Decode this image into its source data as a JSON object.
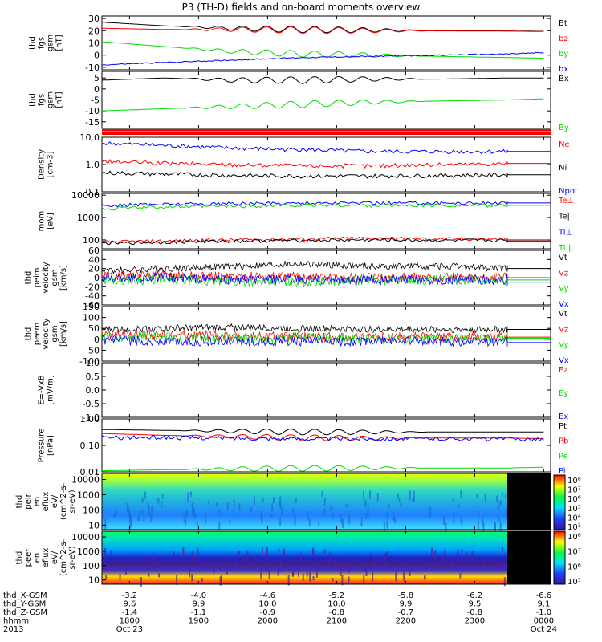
{
  "title": "P3 (TH-D) fields and on-board moments overview",
  "chart_data": [
    {
      "type": "line",
      "panel": "fgs_gsm_nt_1",
      "ylabel": [
        "thd",
        "fgs",
        "gsm",
        "[nT]"
      ],
      "yticks": [
        30,
        20,
        10,
        0,
        -10
      ],
      "ylim": [
        -12,
        32
      ],
      "series": [
        {
          "name": "Bt",
          "color": "#000000",
          "x": [
            17.6,
            18.5,
            19.5,
            20.5,
            21.5,
            22.5,
            23.5,
            24.0
          ],
          "y": [
            27,
            24,
            22,
            21,
            20.5,
            20,
            19.8,
            19.5
          ]
        },
        {
          "name": "bz",
          "color": "#ff0000",
          "x": [
            17.6,
            18.5,
            19.5,
            20.5,
            21.5,
            22.5,
            23.5,
            24.0
          ],
          "y": [
            22,
            21,
            21,
            20.5,
            20,
            19.8,
            19.6,
            19.3
          ]
        },
        {
          "name": "by",
          "color": "#00dd00",
          "x": [
            17.6,
            18.5,
            19.5,
            20.5,
            21.5,
            22.5,
            23.5,
            24.0
          ],
          "y": [
            11,
            7,
            3,
            1,
            0,
            -1,
            -2,
            -2.5
          ]
        },
        {
          "name": "bx",
          "color": "#0000ff",
          "x": [
            17.6,
            18.5,
            19.5,
            20.5,
            21.5,
            22.5,
            23.5,
            24.0
          ],
          "y": [
            -8,
            -6,
            -4,
            -2,
            -1,
            0,
            1,
            2
          ]
        }
      ]
    },
    {
      "type": "line",
      "panel": "fgs_gsm_nt_2",
      "ylabel": [
        "thd",
        "fgs",
        "gsm",
        "[nT]"
      ],
      "yticks": [
        5,
        0,
        -5,
        -10,
        -15
      ],
      "ylim": [
        -18,
        8
      ],
      "series": [
        {
          "name": "Bx",
          "color": "#000000",
          "x": [
            17.6,
            18.5,
            19.5,
            20.5,
            21.5,
            22.5,
            23.5,
            24.0
          ],
          "y": [
            4,
            5,
            4,
            4,
            4.5,
            4.5,
            5,
            5
          ]
        },
        {
          "name": "By",
          "color": "#00dd00",
          "x": [
            17.6,
            18.5,
            19.5,
            20.5,
            21.5,
            22.5,
            23.5,
            24.0
          ],
          "y": [
            -10,
            -9,
            -8,
            -7,
            -6,
            -5.5,
            -5,
            -4.5
          ]
        }
      ]
    },
    {
      "type": "line",
      "panel": "density",
      "ylabel": [
        "Density",
        "[cm-3]"
      ],
      "yticks": [
        "10.0",
        "1.0",
        "0.1"
      ],
      "yscale": "log",
      "ylim": [
        0.1,
        10
      ],
      "series": [
        {
          "name": "Ne",
          "color": "#ff0000",
          "x": [
            17.6,
            18.5,
            19.5,
            20.5,
            21.5,
            22.5,
            23.5,
            24.0
          ],
          "y": [
            1.3,
            1.1,
            1.0,
            0.9,
            0.9,
            1.0,
            1.1,
            1.1
          ]
        },
        {
          "name": "Ni",
          "color": "#000000",
          "x": [
            17.6,
            18.5,
            19.5,
            20.5,
            21.5,
            22.5,
            23.5,
            24.0
          ],
          "y": [
            0.5,
            0.45,
            0.4,
            0.38,
            0.38,
            0.4,
            0.42,
            0.42
          ]
        },
        {
          "name": "Npot",
          "color": "#0000ff",
          "x": [
            17.6,
            18.5,
            19.5,
            20.5,
            21.5,
            22.5,
            23.5,
            24.0
          ],
          "y": [
            6,
            5,
            4,
            3.5,
            3,
            3,
            3,
            3
          ]
        }
      ]
    },
    {
      "type": "line",
      "panel": "temperature",
      "ylabel": [
        "mom",
        "[eV]"
      ],
      "yticks": [
        "10000",
        "1000",
        "100"
      ],
      "yscale": "log",
      "ylim": [
        40,
        12000
      ],
      "series": [
        {
          "name": "Te⊥",
          "color": "#ff0000",
          "x": [
            17.6,
            18.5,
            19.5,
            20.5,
            21.5,
            22.5,
            23.5,
            24.0
          ],
          "y": [
            80,
            90,
            100,
            110,
            120,
            110,
            110,
            100
          ]
        },
        {
          "name": "Te||",
          "color": "#000000",
          "x": [
            17.6,
            18.5,
            19.5,
            20.5,
            21.5,
            22.5,
            23.5,
            24.0
          ],
          "y": [
            70,
            80,
            90,
            95,
            100,
            95,
            95,
            90
          ]
        },
        {
          "name": "Ti⊥",
          "color": "#0000ff",
          "x": [
            17.6,
            18.5,
            19.5,
            20.5,
            21.5,
            22.5,
            23.5,
            24.0
          ],
          "y": [
            3500,
            4000,
            4200,
            4500,
            4500,
            4500,
            4500,
            4500
          ]
        },
        {
          "name": "Ti||",
          "color": "#00dd00",
          "x": [
            17.6,
            18.5,
            19.5,
            20.5,
            21.5,
            22.5,
            23.5,
            24.0
          ],
          "y": [
            2500,
            3000,
            3200,
            3500,
            3500,
            3500,
            3500,
            3500
          ]
        }
      ]
    },
    {
      "type": "line",
      "panel": "ion_velocity",
      "ylabel": [
        "thd",
        "peim",
        "velocity",
        "gsm",
        "[km/s]"
      ],
      "yticks": [
        60,
        40,
        20,
        0,
        -20,
        -40,
        -60
      ],
      "ylim": [
        -60,
        60
      ],
      "series": [
        {
          "name": "Vt",
          "color": "#000000",
          "x": [
            17.6,
            18.5,
            19.5,
            20.5,
            21.5,
            22.5,
            23.5,
            24.0
          ],
          "y": [
            15,
            20,
            25,
            30,
            25,
            25,
            20,
            20
          ]
        },
        {
          "name": "Vz",
          "color": "#ff0000",
          "x": [
            17.6,
            18.5,
            19.5,
            20.5,
            21.5,
            22.5,
            23.5,
            24.0
          ],
          "y": [
            5,
            5,
            3,
            2,
            0,
            0,
            0,
            0
          ]
        },
        {
          "name": "Vy",
          "color": "#00dd00",
          "x": [
            17.6,
            18.5,
            19.5,
            20.5,
            21.5,
            22.5,
            23.5,
            24.0
          ],
          "y": [
            -5,
            -5,
            -10,
            -10,
            -5,
            -5,
            -5,
            -5
          ]
        },
        {
          "name": "Vx",
          "color": "#0000ff",
          "x": [
            17.6,
            18.5,
            19.5,
            20.5,
            21.5,
            22.5,
            23.5,
            24.0
          ],
          "y": [
            0,
            0,
            -5,
            -5,
            -5,
            -5,
            -5,
            -10
          ]
        }
      ]
    },
    {
      "type": "line",
      "panel": "electron_velocity",
      "ylabel": [
        "thd",
        "peem",
        "velocity",
        "gsm",
        "[km/s]"
      ],
      "yticks": [
        150,
        100,
        50,
        0,
        -50,
        -100
      ],
      "ylim": [
        -100,
        150
      ],
      "series": [
        {
          "name": "Vt",
          "color": "#000000",
          "x": [
            17.6,
            18.5,
            19.5,
            20.5,
            21.5,
            22.5,
            23.5,
            24.0
          ],
          "y": [
            45,
            50,
            55,
            50,
            45,
            45,
            45,
            45
          ]
        },
        {
          "name": "Vz",
          "color": "#ff0000",
          "x": [
            17.6,
            18.5,
            19.5,
            20.5,
            21.5,
            22.5,
            23.5,
            24.0
          ],
          "y": [
            20,
            20,
            15,
            10,
            10,
            10,
            10,
            10
          ]
        },
        {
          "name": "Vy",
          "color": "#00dd00",
          "x": [
            17.6,
            18.5,
            19.5,
            20.5,
            21.5,
            22.5,
            23.5,
            24.0
          ],
          "y": [
            10,
            10,
            5,
            5,
            5,
            5,
            5,
            5
          ]
        },
        {
          "name": "Vx",
          "color": "#0000ff",
          "x": [
            17.6,
            18.5,
            19.5,
            20.5,
            21.5,
            22.5,
            23.5,
            24.0
          ],
          "y": [
            -5,
            -10,
            -10,
            -10,
            -10,
            -10,
            -10,
            -15
          ]
        }
      ]
    },
    {
      "type": "line",
      "panel": "efield",
      "ylabel": [
        "E=-VxB",
        "[mV/m]"
      ],
      "yticks": [
        "1.0",
        "0.5",
        "0.0",
        "-0.5",
        "-1.0"
      ],
      "ylim": [
        -1,
        1
      ],
      "series": [
        {
          "name": "Ez",
          "color": "#ff0000",
          "x": [],
          "y": []
        },
        {
          "name": "Ey",
          "color": "#00dd00",
          "x": [],
          "y": []
        },
        {
          "name": "Ex",
          "color": "#0000ff",
          "x": [],
          "y": []
        }
      ]
    },
    {
      "type": "line",
      "panel": "pressure",
      "ylabel": [
        "Pressure",
        "[nPa]"
      ],
      "yticks": [
        "1.00",
        "0.10",
        "0.01"
      ],
      "yscale": "log",
      "ylim": [
        0.01,
        1.0
      ],
      "series": [
        {
          "name": "Pt",
          "color": "#000000",
          "x": [
            17.6,
            18.5,
            19.5,
            20.5,
            21.5,
            22.5,
            23.5,
            24.0
          ],
          "y": [
            0.4,
            0.37,
            0.35,
            0.33,
            0.32,
            0.32,
            0.32,
            0.32
          ]
        },
        {
          "name": "Pb",
          "color": "#ff0000",
          "x": [
            17.6,
            18.5,
            19.5,
            20.5,
            21.5,
            22.5,
            23.5,
            24.0
          ],
          "y": [
            0.28,
            0.24,
            0.22,
            0.2,
            0.19,
            0.19,
            0.19,
            0.18
          ]
        },
        {
          "name": "Pe",
          "color": "#00dd00",
          "x": [
            17.6,
            18.5,
            19.5,
            20.5,
            21.5,
            22.5,
            23.5,
            24.0
          ],
          "y": [
            0.011,
            0.012,
            0.013,
            0.014,
            0.014,
            0.014,
            0.014,
            0.015
          ]
        },
        {
          "name": "Pi",
          "color": "#0000ff",
          "x": [
            17.6,
            18.5,
            19.5,
            20.5,
            21.5,
            22.5,
            23.5,
            24.0
          ],
          "y": [
            0.2,
            0.2,
            0.19,
            0.18,
            0.18,
            0.18,
            0.18,
            0.17
          ]
        }
      ]
    },
    {
      "type": "heatmap",
      "panel": "ion_spectrogram",
      "ylabel": [
        "thd",
        "peir",
        "en",
        "eflux",
        "eV/",
        "(cm^2-s-",
        "sr-eV)"
      ],
      "yticks": [
        "10000",
        "1000",
        "100",
        "10"
      ],
      "yscale": "log",
      "ylim": [
        5,
        25000
      ]
    },
    {
      "type": "heatmap",
      "panel": "electron_spectrogram",
      "ylabel": [
        "thd",
        "peer",
        "en",
        "eflux",
        "eV/",
        "(cm^2-s-",
        "sr-eV)"
      ],
      "yticks": [
        "10000",
        "1000",
        "100",
        "10"
      ],
      "yscale": "log",
      "ylim": [
        5,
        25000
      ]
    }
  ],
  "colorbar_ion": {
    "ticks": [
      "10^8",
      "10^7",
      "10^6",
      "10^5",
      "10^4",
      "10^3"
    ]
  },
  "colorbar_electron": {
    "ticks": [
      "10^8",
      "10^7",
      "10^6",
      "10^5"
    ]
  },
  "xaxis": {
    "ticks": [
      18,
      19,
      20,
      21,
      22,
      23,
      24
    ],
    "xlim": [
      17.6,
      24.1
    ],
    "rows": [
      {
        "label": "thd_X-GSM",
        "values": [
          "-3.2",
          "-4.0",
          "-4.6",
          "-5.2",
          "-5.8",
          "-6.2",
          "-6.6"
        ]
      },
      {
        "label": "thd_Y-GSM",
        "values": [
          "9.6",
          "9.9",
          "10.0",
          "10.0",
          "9.9",
          "9.5",
          "9.1"
        ]
      },
      {
        "label": "thd_Z-GSM",
        "values": [
          "-1.4",
          "-1.1",
          "-0.9",
          "-0.8",
          "-0.7",
          "-0.8",
          "-1.0"
        ]
      },
      {
        "label": "hhmm",
        "values": [
          "1800",
          "1900",
          "2000",
          "2100",
          "2200",
          "2300",
          "0000"
        ]
      },
      {
        "label": "2013",
        "values": [
          "Oct 23",
          "",
          "",
          "",
          "",
          "",
          "Oct 24"
        ]
      }
    ]
  }
}
